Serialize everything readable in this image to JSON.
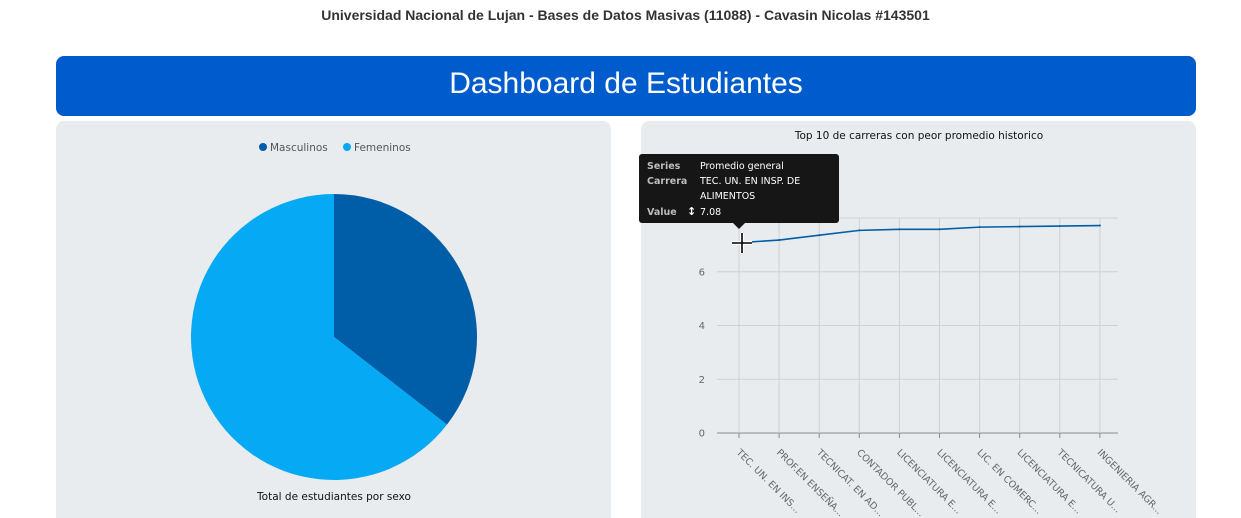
{
  "header": {
    "course_title": "Universidad Nacional de Lujan - Bases de Datos Masivas (11088) - Cavasin Nicolas #143501",
    "dashboard_title": "Dashboard de Estudiantes"
  },
  "chart_data": [
    {
      "type": "pie",
      "title": "Total de estudiantes por sexo",
      "legend_position": "top",
      "categories": [
        "Masculinos",
        "Femeninos"
      ],
      "values": [
        35.5,
        64.5
      ],
      "colors": [
        "#005ea8",
        "#05a9f4"
      ]
    },
    {
      "type": "line",
      "title": "Top 10 de carreras con peor promedio historico",
      "categories": [
        "TEC. UN. EN INS...",
        "PROF.EN ENSEÑA...",
        "TECNICAT. EN AD...",
        "CONTADOR PUBL...",
        "LICENCIATURA E...",
        "LICENCIATURA E...",
        "LIC. EN COMERC...",
        "LICENCIATURA E...",
        "TECNICATURA U...",
        "INGENIERIA AGR..."
      ],
      "series": [
        {
          "name": "Promedio general",
          "values": [
            7.08,
            7.18,
            7.36,
            7.54,
            7.58,
            7.58,
            7.66,
            7.68,
            7.7,
            7.72
          ],
          "color": "#005ea8"
        }
      ],
      "yticks": [
        "0",
        "2",
        "4",
        "6"
      ],
      "ylim": [
        0,
        8
      ],
      "grid": true
    }
  ],
  "tooltip": {
    "series_key": "Series",
    "series_value": "Promedio general",
    "carrera_key": "Carrera",
    "carrera_value_line1": "TEC. UN. EN INSP. DE",
    "carrera_value_line2": "ALIMENTOS",
    "value_key": "Value",
    "value_value": "7.08"
  }
}
